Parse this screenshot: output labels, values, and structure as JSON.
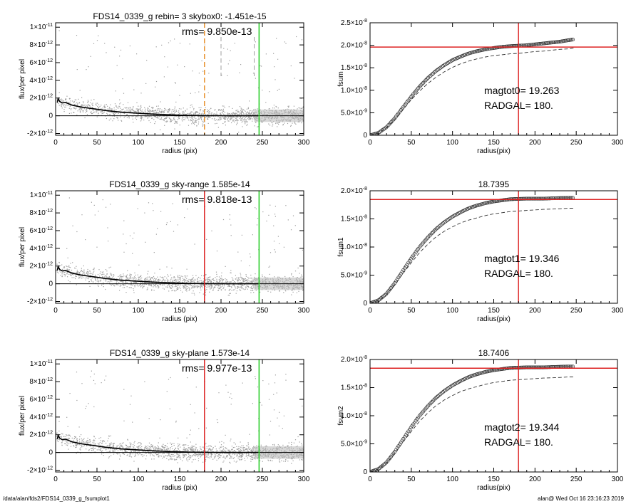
{
  "footer": {
    "left": "/data/alan/fds2/FDS14_0339_g_fsumplot1",
    "right": "alan@  Wed Oct 16 23:16:23 2019"
  },
  "colors": {
    "points": "#9e9e9e",
    "profile": "#000000",
    "orange": "#e8922e",
    "green": "#22cc22",
    "red": "#dd2222"
  },
  "chart_data": [
    {
      "type": "scatter",
      "title": "FDS14_0339_g rebin= 3    skybox0: -1.451e-15",
      "annotation": "rms= 9.850e-13",
      "xlabel": "radius (pix)",
      "ylabel": "flux/per pixel",
      "xlim": [
        0,
        300
      ],
      "ylim": [
        -2.2e-12,
        1.05e-11
      ],
      "xticks": [
        "0",
        "50",
        "100",
        "150",
        "200",
        "250",
        "300"
      ],
      "yticks": [
        {
          "value": 1e-11,
          "base": "1×10",
          "exp": "-11"
        },
        {
          "value": 8e-12,
          "base": "8×10",
          "exp": "-12"
        },
        {
          "value": 6e-12,
          "base": "6×10",
          "exp": "-12"
        },
        {
          "value": 4e-12,
          "base": "4×10",
          "exp": "-12"
        },
        {
          "value": 2e-12,
          "base": "2×10",
          "exp": "-12"
        },
        {
          "value": 0,
          "base": "0",
          "exp": ""
        },
        {
          "value": -2e-12,
          "base": "-2×10",
          "exp": "-12"
        }
      ],
      "profile": {
        "x": [
          2,
          3,
          5,
          8,
          12,
          20,
          30,
          45,
          60,
          80,
          100,
          120,
          140,
          160,
          180,
          200,
          220,
          245
        ],
        "y": [
          1.5e-12,
          1.95e-12,
          1.6e-12,
          1.45e-12,
          1.5e-12,
          1.2e-12,
          1e-12,
          8e-13,
          6e-13,
          4e-13,
          2.8e-13,
          1.8e-13,
          1e-13,
          5e-14,
          2e-14,
          1e-14,
          0.0,
          0.0
        ]
      },
      "vlines": [
        {
          "x": 180,
          "color": "orange",
          "style": "dashed"
        },
        {
          "x": 200,
          "color": "gray",
          "style": "dashed"
        },
        {
          "x": 240,
          "color": "gray",
          "style": "dashed"
        },
        {
          "x": 246,
          "color": "green",
          "style": "solid"
        }
      ],
      "hlines": [
        {
          "y": 0,
          "color": "black"
        }
      ],
      "scatter_extent": 300
    },
    {
      "type": "line",
      "title": "",
      "xlabel": "radius(pix)",
      "ylabel": "fsum",
      "xlim": [
        0,
        300
      ],
      "ylim": [
        0,
        2.5e-08
      ],
      "xticks": [
        "0",
        "50",
        "100",
        "150",
        "200",
        "250",
        "300"
      ],
      "yticks": [
        {
          "value": 2.5e-08,
          "base": "2.5×10",
          "exp": "-8"
        },
        {
          "value": 2e-08,
          "base": "2.0×10",
          "exp": "-8"
        },
        {
          "value": 1.5e-08,
          "base": "1.5×10",
          "exp": "-8"
        },
        {
          "value": 1e-08,
          "base": "1.0×10",
          "exp": "-8"
        },
        {
          "value": 5e-09,
          "base": "5.0×10",
          "exp": "-9"
        },
        {
          "value": 0,
          "base": "0",
          "exp": ""
        }
      ],
      "curve": {
        "x": [
          0,
          10,
          20,
          30,
          40,
          50,
          60,
          70,
          80,
          90,
          100,
          110,
          120,
          130,
          140,
          150,
          160,
          170,
          180,
          190,
          200,
          210,
          220,
          230,
          240,
          247
        ],
        "y": [
          0,
          5e-10,
          1.8e-09,
          3.8e-09,
          6.2e-09,
          8.6e-09,
          1.08e-08,
          1.27e-08,
          1.43e-08,
          1.56e-08,
          1.67e-08,
          1.75e-08,
          1.82e-08,
          1.87e-08,
          1.91e-08,
          1.94e-08,
          1.965e-08,
          1.98e-08,
          1.99e-08,
          2e-08,
          2.02e-08,
          2.04e-08,
          2.06e-08,
          2.08e-08,
          2.11e-08,
          2.13e-08
        ]
      },
      "dashed": {
        "x": [
          0,
          10,
          20,
          30,
          40,
          50,
          60,
          70,
          80,
          90,
          100,
          110,
          120,
          130,
          140,
          150,
          160,
          170,
          180,
          190,
          200,
          210,
          220,
          230,
          240,
          247
        ],
        "y": [
          0,
          5e-10,
          1.7e-09,
          3.5e-09,
          5.7e-09,
          7.9e-09,
          9.8e-09,
          1.15e-08,
          1.29e-08,
          1.41e-08,
          1.51e-08,
          1.59e-08,
          1.65e-08,
          1.7e-08,
          1.74e-08,
          1.77e-08,
          1.79e-08,
          1.81e-08,
          1.82e-08,
          1.84e-08,
          1.86e-08,
          1.87e-08,
          1.89e-08,
          1.91e-08,
          1.92e-08,
          1.94e-08
        ]
      },
      "vline": {
        "x": 180,
        "color": "red"
      },
      "hline": {
        "y": 1.96e-08,
        "color": "red"
      },
      "annotations": [
        "magtot0=  19.263",
        "RADGAL=    180."
      ]
    },
    {
      "type": "scatter",
      "title": "FDS14_0339_g sky-range  1.585e-14",
      "annotation": "rms= 9.818e-13",
      "xlabel": "radius (pix)",
      "ylabel": "flux/per pixel",
      "xlim": [
        0,
        300
      ],
      "ylim": [
        -2.2e-12,
        1.05e-11
      ],
      "xticks": [
        "0",
        "50",
        "100",
        "150",
        "200",
        "250",
        "300"
      ],
      "yticks": [
        {
          "value": 1e-11,
          "base": "1×10",
          "exp": "-11"
        },
        {
          "value": 8e-12,
          "base": "8×10",
          "exp": "-12"
        },
        {
          "value": 6e-12,
          "base": "6×10",
          "exp": "-12"
        },
        {
          "value": 4e-12,
          "base": "4×10",
          "exp": "-12"
        },
        {
          "value": 2e-12,
          "base": "2×10",
          "exp": "-12"
        },
        {
          "value": 0,
          "base": "0",
          "exp": ""
        },
        {
          "value": -2e-12,
          "base": "-2×10",
          "exp": "-12"
        }
      ],
      "profile": {
        "x": [
          2,
          3,
          5,
          8,
          12,
          20,
          30,
          45,
          60,
          80,
          100,
          120,
          140,
          160,
          180,
          200,
          220,
          245
        ],
        "y": [
          1.5e-12,
          1.95e-12,
          1.6e-12,
          1.45e-12,
          1.5e-12,
          1.2e-12,
          1e-12,
          8e-13,
          6e-13,
          4e-13,
          2.8e-13,
          1.8e-13,
          1e-13,
          5e-14,
          2e-14,
          1e-14,
          0.0,
          0.0
        ]
      },
      "vlines": [
        {
          "x": 180,
          "color": "red",
          "style": "solid"
        },
        {
          "x": 246,
          "color": "green",
          "style": "solid"
        }
      ],
      "hlines": [
        {
          "y": 0,
          "color": "black"
        }
      ],
      "scatter_extent": 300
    },
    {
      "type": "line",
      "title": "18.7395",
      "xlabel": "radius(pix)",
      "ylabel": "fsum1",
      "xlim": [
        0,
        300
      ],
      "ylim": [
        0,
        2e-08
      ],
      "xticks": [
        "0",
        "50",
        "100",
        "150",
        "200",
        "250",
        "300"
      ],
      "yticks": [
        {
          "value": 2e-08,
          "base": "2.0×10",
          "exp": "-8"
        },
        {
          "value": 1.5e-08,
          "base": "1.5×10",
          "exp": "-8"
        },
        {
          "value": 1e-08,
          "base": "1.0×10",
          "exp": "-8"
        },
        {
          "value": 5e-09,
          "base": "5.0×10",
          "exp": "-9"
        },
        {
          "value": 0,
          "base": "0",
          "exp": ""
        }
      ],
      "curve": {
        "x": [
          0,
          10,
          20,
          30,
          40,
          50,
          60,
          70,
          80,
          90,
          100,
          110,
          120,
          130,
          140,
          150,
          160,
          170,
          180,
          190,
          200,
          210,
          220,
          230,
          240,
          247
        ],
        "y": [
          0,
          5e-10,
          1.7e-09,
          3.6e-09,
          5.8e-09,
          8e-09,
          1e-08,
          1.17e-08,
          1.32e-08,
          1.44e-08,
          1.54e-08,
          1.62e-08,
          1.69e-08,
          1.74e-08,
          1.78e-08,
          1.81e-08,
          1.83e-08,
          1.85e-08,
          1.855e-08,
          1.86e-08,
          1.86e-08,
          1.86e-08,
          1.865e-08,
          1.87e-08,
          1.875e-08,
          1.875e-08
        ]
      },
      "dashed": {
        "x": [
          0,
          10,
          20,
          30,
          40,
          50,
          60,
          70,
          80,
          90,
          100,
          110,
          120,
          130,
          140,
          150,
          160,
          170,
          180,
          190,
          200,
          210,
          220,
          230,
          240,
          247
        ],
        "y": [
          0,
          5e-10,
          1.6e-09,
          3.3e-09,
          5.3e-09,
          7.2e-09,
          9e-09,
          1.05e-08,
          1.18e-08,
          1.28e-08,
          1.36e-08,
          1.43e-08,
          1.48e-08,
          1.52e-08,
          1.56e-08,
          1.59e-08,
          1.61e-08,
          1.63e-08,
          1.64e-08,
          1.65e-08,
          1.66e-08,
          1.67e-08,
          1.675e-08,
          1.68e-08,
          1.69e-08,
          1.69e-08
        ]
      },
      "vline": {
        "x": 180,
        "color": "red"
      },
      "hline": {
        "y": 1.845e-08,
        "color": "red"
      },
      "annotations": [
        "magtot1=  19.346",
        "RADGAL=    180."
      ]
    },
    {
      "type": "scatter",
      "title": "FDS14_0339_g sky-plane  1.573e-14",
      "annotation": "rms= 9.977e-13",
      "xlabel": "radius (pix)",
      "ylabel": "flux/per pixel",
      "xlim": [
        0,
        300
      ],
      "ylim": [
        -2.2e-12,
        1.05e-11
      ],
      "xticks": [
        "0",
        "50",
        "100",
        "150",
        "200",
        "250",
        "300"
      ],
      "yticks": [
        {
          "value": 1e-11,
          "base": "1×10",
          "exp": "-11"
        },
        {
          "value": 8e-12,
          "base": "8×10",
          "exp": "-12"
        },
        {
          "value": 6e-12,
          "base": "6×10",
          "exp": "-12"
        },
        {
          "value": 4e-12,
          "base": "4×10",
          "exp": "-12"
        },
        {
          "value": 2e-12,
          "base": "2×10",
          "exp": "-12"
        },
        {
          "value": 0,
          "base": "0",
          "exp": ""
        },
        {
          "value": -2e-12,
          "base": "-2×10",
          "exp": "-12"
        }
      ],
      "profile": {
        "x": [
          2,
          3,
          5,
          8,
          12,
          20,
          30,
          45,
          60,
          80,
          100,
          120,
          140,
          160,
          180,
          200,
          220,
          245
        ],
        "y": [
          1.5e-12,
          1.95e-12,
          1.6e-12,
          1.45e-12,
          1.5e-12,
          1.2e-12,
          1e-12,
          8e-13,
          6e-13,
          4e-13,
          2.8e-13,
          1.8e-13,
          1e-13,
          5e-14,
          2e-14,
          1e-14,
          0.0,
          0.0
        ]
      },
      "vlines": [
        {
          "x": 180,
          "color": "red",
          "style": "solid"
        },
        {
          "x": 246,
          "color": "green",
          "style": "solid"
        }
      ],
      "hlines": [
        {
          "y": 0,
          "color": "black"
        }
      ],
      "scatter_extent": 300
    },
    {
      "type": "line",
      "title": "18.7406",
      "xlabel": "radius(pix)",
      "ylabel": "fsum2",
      "xlim": [
        0,
        300
      ],
      "ylim": [
        0,
        2e-08
      ],
      "xticks": [
        "0",
        "50",
        "100",
        "150",
        "200",
        "250",
        "300"
      ],
      "yticks": [
        {
          "value": 2e-08,
          "base": "2.0×10",
          "exp": "-8"
        },
        {
          "value": 1.5e-08,
          "base": "1.5×10",
          "exp": "-8"
        },
        {
          "value": 1e-08,
          "base": "1.0×10",
          "exp": "-8"
        },
        {
          "value": 5e-09,
          "base": "5.0×10",
          "exp": "-9"
        },
        {
          "value": 0,
          "base": "0",
          "exp": ""
        }
      ],
      "curve": {
        "x": [
          0,
          10,
          20,
          30,
          40,
          50,
          60,
          70,
          80,
          90,
          100,
          110,
          120,
          130,
          140,
          150,
          160,
          170,
          180,
          190,
          200,
          210,
          220,
          230,
          240,
          247
        ],
        "y": [
          0,
          5e-10,
          1.7e-09,
          3.6e-09,
          5.8e-09,
          8e-09,
          1e-08,
          1.17e-08,
          1.32e-08,
          1.44e-08,
          1.54e-08,
          1.62e-08,
          1.69e-08,
          1.74e-08,
          1.78e-08,
          1.81e-08,
          1.83e-08,
          1.85e-08,
          1.855e-08,
          1.86e-08,
          1.86e-08,
          1.86e-08,
          1.865e-08,
          1.87e-08,
          1.875e-08,
          1.875e-08
        ]
      },
      "dashed": {
        "x": [
          0,
          10,
          20,
          30,
          40,
          50,
          60,
          70,
          80,
          90,
          100,
          110,
          120,
          130,
          140,
          150,
          160,
          170,
          180,
          190,
          200,
          210,
          220,
          230,
          240,
          247
        ],
        "y": [
          0,
          5e-10,
          1.6e-09,
          3.3e-09,
          5.3e-09,
          7.2e-09,
          9e-09,
          1.05e-08,
          1.18e-08,
          1.28e-08,
          1.36e-08,
          1.43e-08,
          1.48e-08,
          1.52e-08,
          1.56e-08,
          1.59e-08,
          1.61e-08,
          1.63e-08,
          1.64e-08,
          1.65e-08,
          1.66e-08,
          1.67e-08,
          1.675e-08,
          1.68e-08,
          1.69e-08,
          1.69e-08
        ]
      },
      "vline": {
        "x": 180,
        "color": "red"
      },
      "hline": {
        "y": 1.845e-08,
        "color": "red"
      },
      "annotations": [
        "magtot2=  19.344",
        "RADGAL=    180."
      ]
    }
  ]
}
